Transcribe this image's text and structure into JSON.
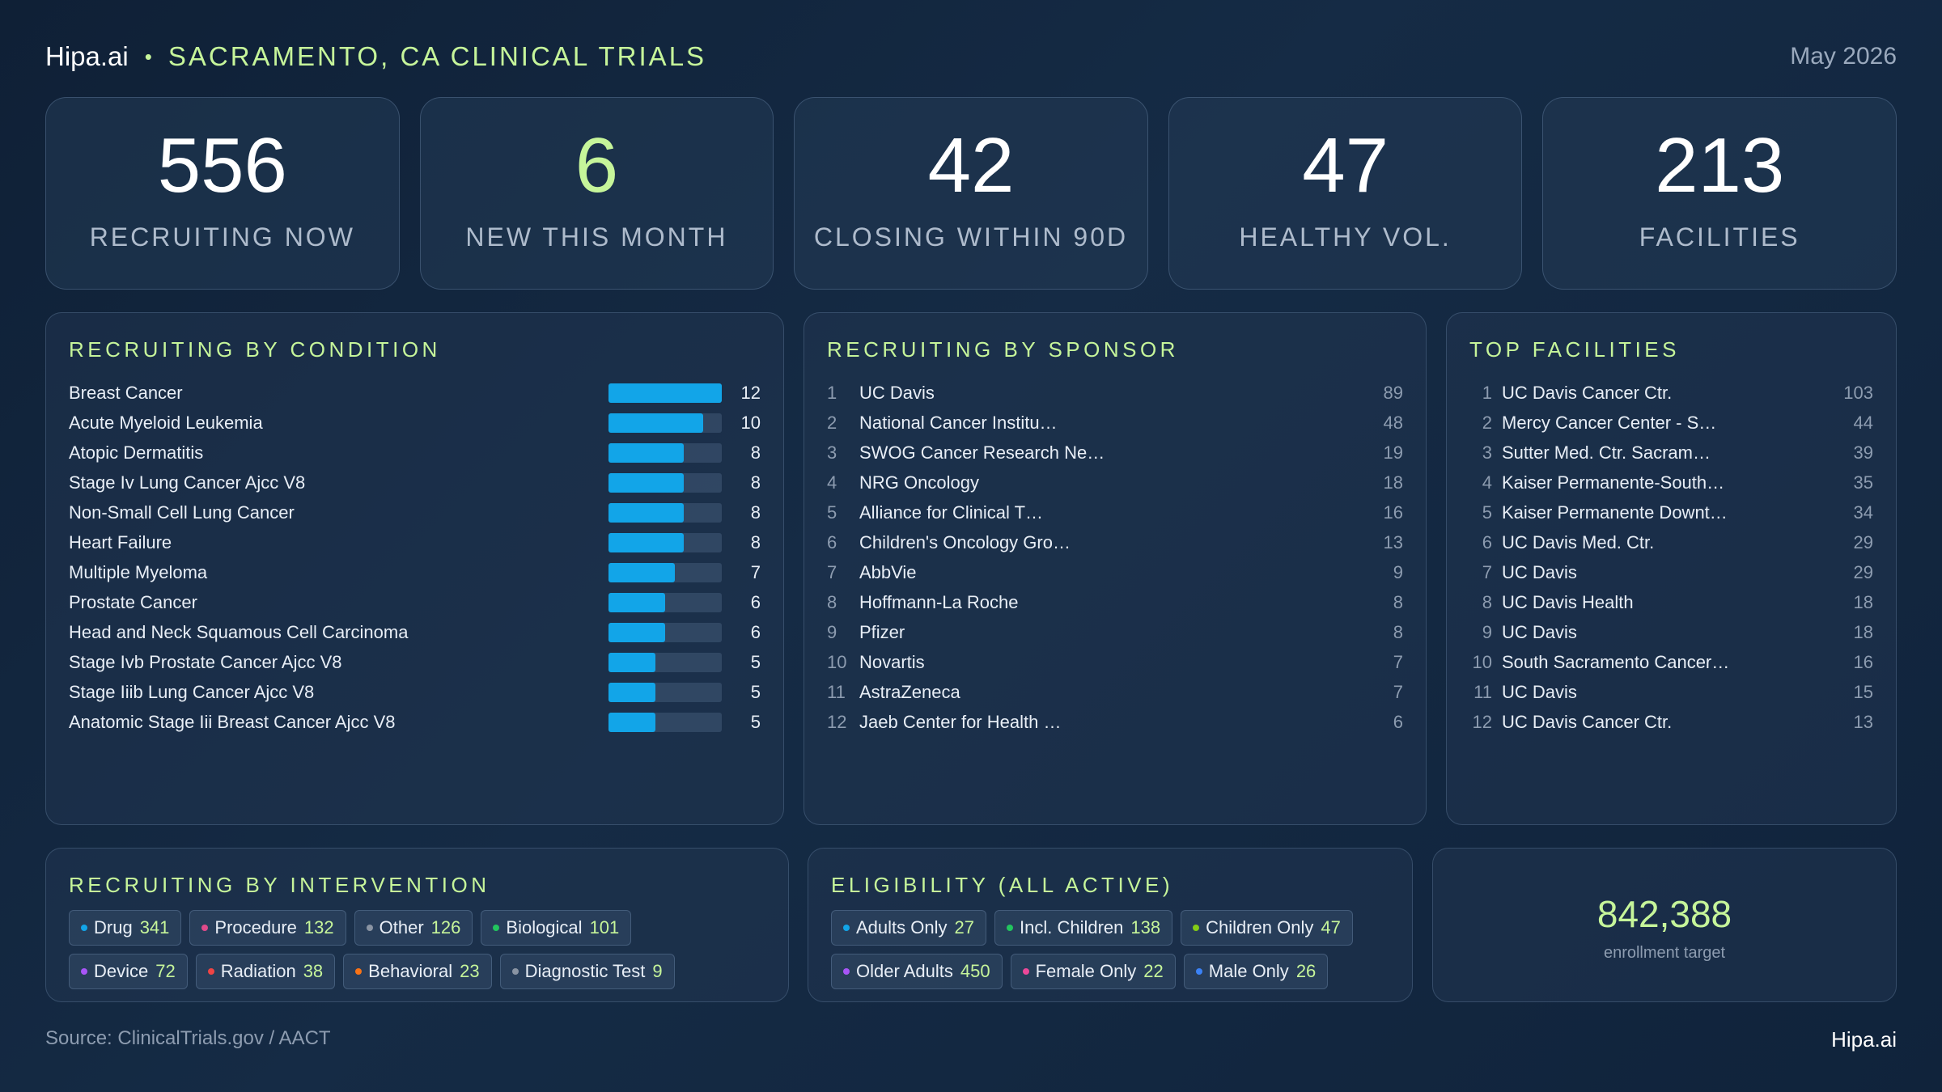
{
  "header": {
    "brand": "Hipa.ai",
    "separator": "•",
    "title": "SACRAMENTO, CA CLINICAL TRIALS",
    "date": "May 2026"
  },
  "stats": [
    {
      "value": "556",
      "label": "RECRUITING NOW",
      "accent": false
    },
    {
      "value": "6",
      "label": "NEW THIS MONTH",
      "accent": true
    },
    {
      "value": "42",
      "label": "CLOSING WITHIN 90D",
      "accent": false
    },
    {
      "value": "47",
      "label": "HEALTHY VOL.",
      "accent": false
    },
    {
      "value": "213",
      "label": "FACILITIES",
      "accent": false
    }
  ],
  "conditions": {
    "title": "RECRUITING BY CONDITION",
    "bar_max": 12,
    "items": [
      {
        "name": "Breast Cancer",
        "value": 12
      },
      {
        "name": "Acute Myeloid Leukemia",
        "value": 10
      },
      {
        "name": "Atopic Dermatitis",
        "value": 8
      },
      {
        "name": "Stage Iv Lung Cancer Ajcc V8",
        "value": 8
      },
      {
        "name": "Non-Small Cell Lung Cancer",
        "value": 8
      },
      {
        "name": "Heart Failure",
        "value": 8
      },
      {
        "name": "Multiple Myeloma",
        "value": 7
      },
      {
        "name": "Prostate Cancer",
        "value": 6
      },
      {
        "name": "Head and Neck Squamous Cell Carcinoma",
        "value": 6
      },
      {
        "name": "Stage Ivb Prostate Cancer Ajcc V8",
        "value": 5
      },
      {
        "name": "Stage Iiib Lung Cancer Ajcc V8",
        "value": 5
      },
      {
        "name": "Anatomic Stage Iii Breast Cancer Ajcc V8",
        "value": 5
      }
    ]
  },
  "sponsors": {
    "title": "RECRUITING BY SPONSOR",
    "items": [
      {
        "rank": "1",
        "name": "UC Davis",
        "count": "89"
      },
      {
        "rank": "2",
        "name": "National Cancer Institu…",
        "count": "48"
      },
      {
        "rank": "3",
        "name": "SWOG Cancer Research Ne…",
        "count": "19"
      },
      {
        "rank": "4",
        "name": "NRG Oncology",
        "count": "18"
      },
      {
        "rank": "5",
        "name": "Alliance for Clinical T…",
        "count": "16"
      },
      {
        "rank": "6",
        "name": "Children's Oncology Gro…",
        "count": "13"
      },
      {
        "rank": "7",
        "name": "AbbVie",
        "count": "9"
      },
      {
        "rank": "8",
        "name": "Hoffmann-La Roche",
        "count": "8"
      },
      {
        "rank": "9",
        "name": "Pfizer",
        "count": "8"
      },
      {
        "rank": "10",
        "name": "Novartis",
        "count": "7"
      },
      {
        "rank": "11",
        "name": "AstraZeneca",
        "count": "7"
      },
      {
        "rank": "12",
        "name": "Jaeb Center for Health …",
        "count": "6"
      }
    ]
  },
  "facilities": {
    "title": "TOP FACILITIES",
    "items": [
      {
        "rank": "1",
        "name": "UC Davis Cancer Ctr.",
        "count": "103"
      },
      {
        "rank": "2",
        "name": "Mercy Cancer Center - S…",
        "count": "44"
      },
      {
        "rank": "3",
        "name": "Sutter Med. Ctr. Sacram…",
        "count": "39"
      },
      {
        "rank": "4",
        "name": "Kaiser Permanente-South…",
        "count": "35"
      },
      {
        "rank": "5",
        "name": "Kaiser Permanente Downt…",
        "count": "34"
      },
      {
        "rank": "6",
        "name": "UC Davis Med. Ctr.",
        "count": "29"
      },
      {
        "rank": "7",
        "name": "UC Davis",
        "count": "29"
      },
      {
        "rank": "8",
        "name": "UC Davis Health",
        "count": "18"
      },
      {
        "rank": "9",
        "name": "UC Davis",
        "count": "18"
      },
      {
        "rank": "10",
        "name": "South Sacramento Cancer…",
        "count": "16"
      },
      {
        "rank": "11",
        "name": "UC Davis",
        "count": "15"
      },
      {
        "rank": "12",
        "name": "UC Davis Cancer Ctr.",
        "count": "13"
      }
    ]
  },
  "interventions": {
    "title": "RECRUITING BY INTERVENTION",
    "rows": [
      [
        {
          "label": "Drug",
          "value": "341",
          "color": "#12a5e8"
        },
        {
          "label": "Procedure",
          "value": "132",
          "color": "#e04a8a"
        },
        {
          "label": "Other",
          "value": "126",
          "color": "#8a94a3"
        },
        {
          "label": "Biological",
          "value": "101",
          "color": "#22c55e"
        }
      ],
      [
        {
          "label": "Device",
          "value": "72",
          "color": "#a855f7"
        },
        {
          "label": "Radiation",
          "value": "38",
          "color": "#ef4444"
        },
        {
          "label": "Behavioral",
          "value": "23",
          "color": "#f97316"
        },
        {
          "label": "Diagnostic Test",
          "value": "9",
          "color": "#8a94a3"
        }
      ]
    ]
  },
  "eligibility": {
    "title": "ELIGIBILITY (ALL ACTIVE)",
    "rows": [
      [
        {
          "label": "Adults Only",
          "value": "27",
          "color": "#12a5e8"
        },
        {
          "label": "Incl. Children",
          "value": "138",
          "color": "#22c55e"
        },
        {
          "label": "Children Only",
          "value": "47",
          "color": "#84cc16"
        }
      ],
      [
        {
          "label": "Older Adults",
          "value": "450",
          "color": "#a855f7"
        },
        {
          "label": "Female Only",
          "value": "22",
          "color": "#ec4899"
        },
        {
          "label": "Male Only",
          "value": "26",
          "color": "#3b82f6"
        }
      ]
    ]
  },
  "enrollment": {
    "value": "842,388",
    "label": "enrollment target"
  },
  "footer": {
    "source": "Source: ClinicalTrials.gov / AACT",
    "brand": "Hipa.ai"
  }
}
